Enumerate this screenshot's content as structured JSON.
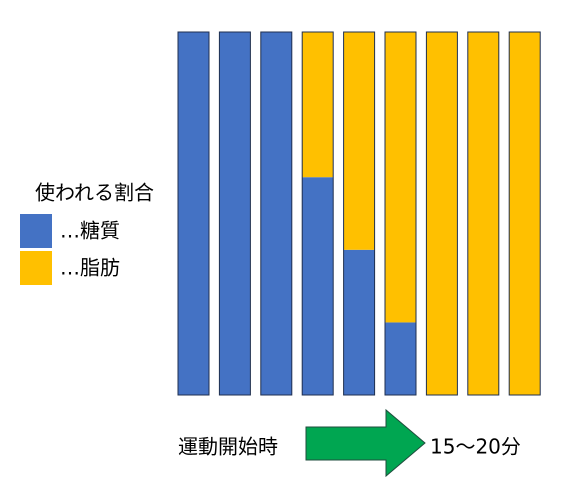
{
  "chart_data": {
    "type": "stacked_bar",
    "legend_title": "使われる割合",
    "series": [
      {
        "name": "…糖質",
        "color": "#4472c4",
        "values": [
          100,
          100,
          100,
          60,
          40,
          20,
          0,
          0,
          0
        ]
      },
      {
        "name": "…脂肪",
        "color": "#ffc000",
        "values": [
          0,
          0,
          0,
          40,
          60,
          80,
          100,
          100,
          100
        ]
      }
    ],
    "ylim": [
      0,
      100
    ],
    "annotations": {
      "start": "運動開始時",
      "end": "15～20分"
    },
    "arrow_color": "#00a651"
  }
}
